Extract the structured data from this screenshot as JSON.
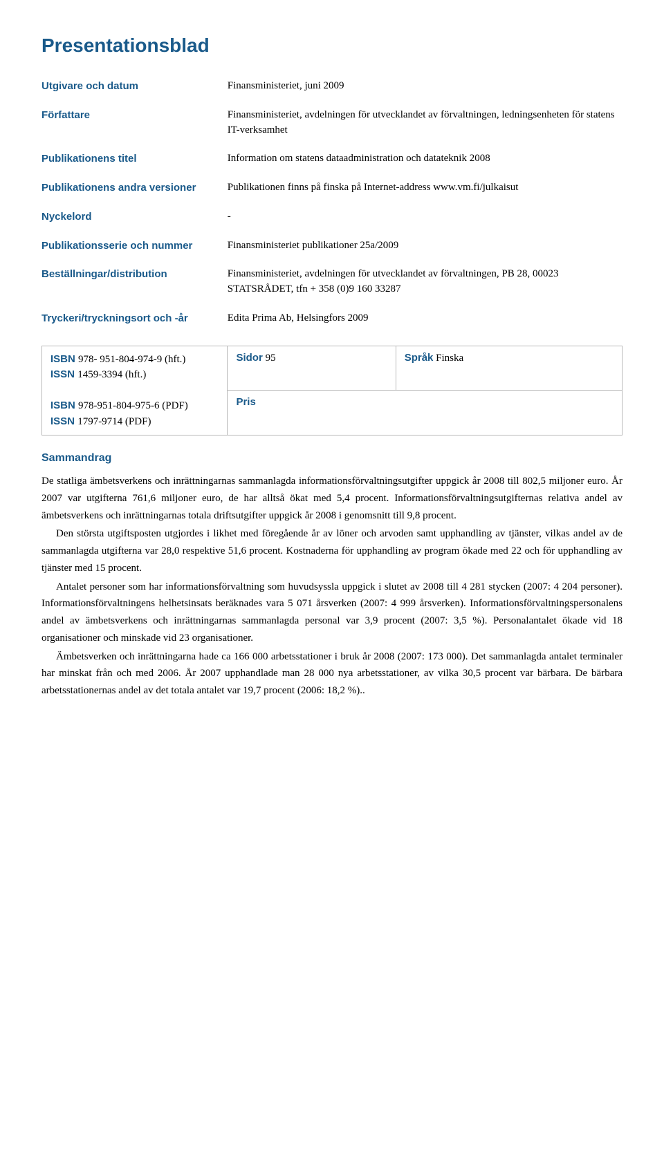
{
  "colors": {
    "heading": "#1a5a8a",
    "text": "#000000",
    "border": "#b8b8b8",
    "background": "#ffffff"
  },
  "typography": {
    "heading_font": "Arial",
    "body_font": "Georgia",
    "title_size_pt": 21,
    "label_size_pt": 11,
    "body_size_pt": 11
  },
  "title": "Presentationsblad",
  "rows": {
    "publisher": {
      "label": "Utgivare och datum",
      "value": "Finansministeriet, juni 2009"
    },
    "author": {
      "label": "Författare",
      "value": "Finansministeriet, avdelningen för utvecklandet av förvaltningen, ledningsenheten för statens IT-verksamhet"
    },
    "pub_title": {
      "label": "Publikationens titel",
      "value": "Information om statens dataadministration och datateknik 2008"
    },
    "other_versions": {
      "label": "Publikationens andra versioner",
      "value": "Publikationen finns på finska på Internet-address www.vm.fi/julkaisut"
    },
    "keywords": {
      "label": "Nyckelord",
      "value": "-"
    },
    "series": {
      "label": "Publikationsserie och nummer",
      "value": "Finansministeriet publikationer 25a/2009"
    },
    "distribution": {
      "label": "Beställningar/distribution",
      "value": "Finansministeriet, avdelningen för utvecklandet av förvaltningen, PB 28, 00023 STATSRÅDET, tfn + 358 (0)9 160 33287"
    },
    "printer": {
      "label": "Tryckeri/tryckningsort och -år",
      "value": "Edita Prima Ab, Helsingfors 2009"
    }
  },
  "box": {
    "isbn_label": "ISBN",
    "isbn_print": "978- 951-804-974-9 (hft.)",
    "issn_label": "ISSN",
    "issn_print": "1459-3394 (hft.)",
    "isbn_pdf": "978-951-804-975-6 (PDF)",
    "issn_pdf": "1797-9714 (PDF)",
    "pages_label": "Sidor",
    "pages_value": "95",
    "lang_label": "Språk",
    "lang_value": "Finska",
    "price_label": "Pris",
    "price_value": ""
  },
  "abstract": {
    "heading": "Sammandrag",
    "p1": "De statliga ämbetsverkens och inrättningarnas sammanlagda informationsförvaltningsutgifter uppgick år 2008 till 802,5 miljoner euro. År 2007 var utgifterna 761,6 miljoner euro, de har alltså ökat med 5,4 procent. Informationsförvaltningsutgifternas relativa andel av ämbetsverkens och inrättningarnas totala driftsutgifter uppgick år 2008 i genomsnitt till 9,8 procent.",
    "p2": "Den största utgiftsposten utgjordes i likhet med föregående år av löner och arvoden samt upphandling av tjänster, vilkas andel av de sammanlagda utgifterna var 28,0 respektive 51,6 procent. Kostnaderna för upphandling av program ökade med 22 och för upphandling av tjänster med 15 procent.",
    "p3": "Antalet personer som har informationsförvaltning som huvudsyssla uppgick i slutet av 2008 till 4 281 stycken (2007: 4 204 personer). Informationsförvaltningens helhetsinsats beräknades vara 5 071 årsverken (2007: 4 999 årsverken). Informationsförvaltningspersonalens andel av ämbetsverkens och inrättningarnas sammanlagda personal var 3,9 procent (2007: 3,5 %). Personalantalet ökade vid 18 organisationer och minskade vid 23 organisationer.",
    "p4": "Ämbetsverken och inrättningarna hade ca 166 000 arbetsstationer i bruk år 2008 (2007: 173 000). Det sammanlagda antalet terminaler har minskat från och med 2006. År 2007 upphandlade man 28 000 nya arbetsstationer, av vilka 30,5 procent var bärbara. De bärbara arbetsstationernas andel av det totala antalet var 19,7 procent (2006: 18,2 %).."
  }
}
